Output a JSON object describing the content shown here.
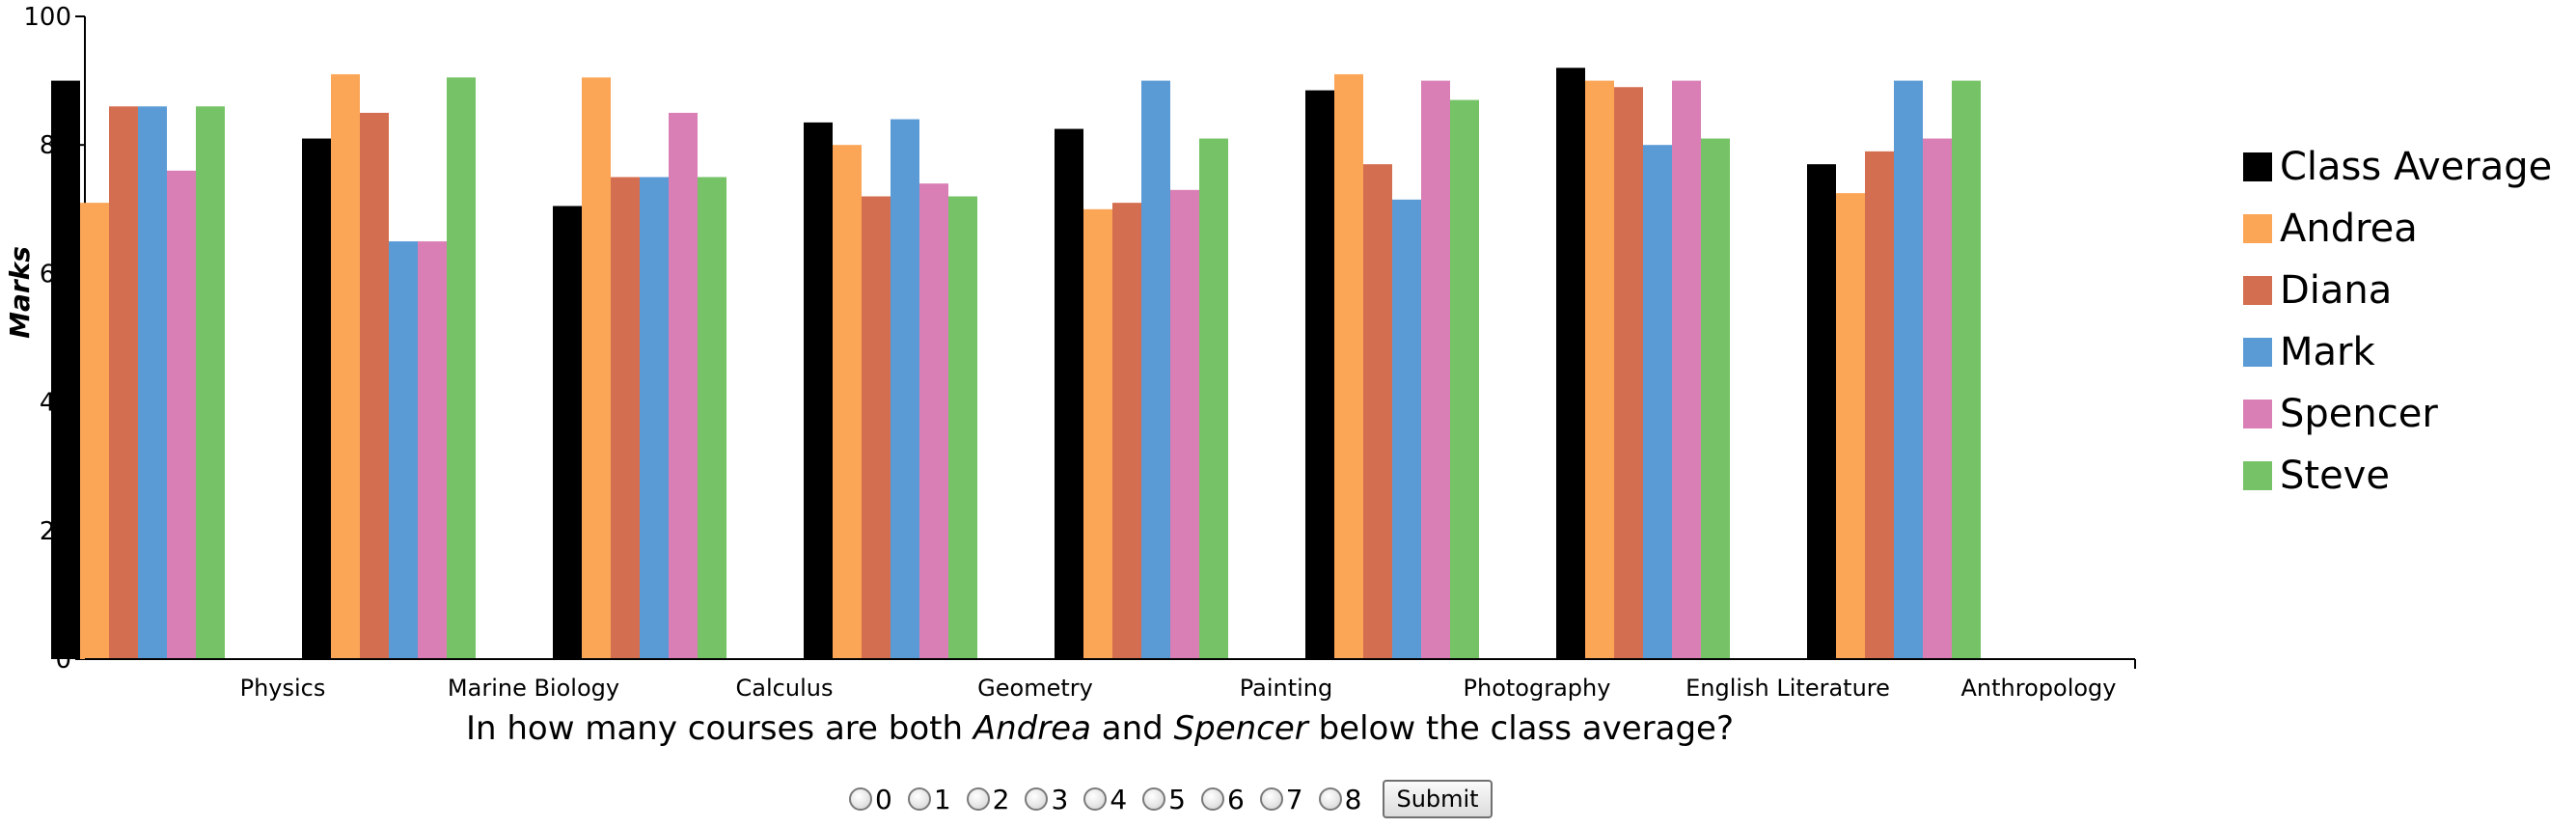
{
  "chart_data": {
    "type": "bar",
    "title": "",
    "xlabel": "",
    "ylabel": "Marks",
    "ylim": [
      0,
      100
    ],
    "yticks": [
      0,
      20,
      40,
      60,
      80,
      100
    ],
    "grid": false,
    "legend_position": "right",
    "categories": [
      "Physics",
      "Marine Biology",
      "Calculus",
      "Geometry",
      "Painting",
      "Photography",
      "English Literature",
      "Anthropology"
    ],
    "series": [
      {
        "name": "Class Average",
        "color": "#000000",
        "values": [
          90,
          81,
          70.5,
          83.5,
          82.5,
          88.5,
          92,
          77
        ]
      },
      {
        "name": "Andrea",
        "color": "#fba557",
        "values": [
          71,
          91,
          90.5,
          80,
          70,
          91,
          90,
          72.5
        ]
      },
      {
        "name": "Diana",
        "color": "#d46e50",
        "values": [
          86,
          85,
          75,
          72,
          71,
          77,
          89,
          79
        ]
      },
      {
        "name": "Mark",
        "color": "#5b9bd5",
        "values": [
          86,
          65,
          75,
          84,
          90,
          71.5,
          80,
          90
        ]
      },
      {
        "name": "Spencer",
        "color": "#d97fb5",
        "values": [
          76,
          65,
          85,
          74,
          73,
          90,
          90,
          81
        ]
      },
      {
        "name": "Steve",
        "color": "#76c266",
        "values": [
          86,
          90.5,
          75,
          72,
          81,
          87,
          81,
          90
        ]
      }
    ]
  },
  "question": {
    "part1": "In how many courses are both ",
    "name1": "Andrea",
    "part2": " and ",
    "name2": "Spencer",
    "part3": " below the class average?"
  },
  "answer_options": [
    "0",
    "1",
    "2",
    "3",
    "4",
    "5",
    "6",
    "7",
    "8"
  ],
  "submit_label": "Submit"
}
